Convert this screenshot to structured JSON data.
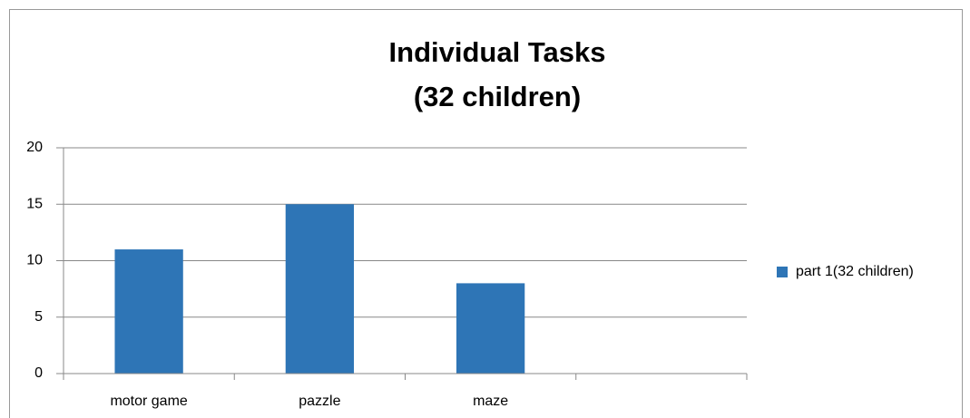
{
  "chart_data": {
    "type": "bar",
    "title": [
      "Individual Tasks",
      "(32 children)"
    ],
    "categories": [
      "motor game",
      "pazzle",
      "maze",
      null
    ],
    "series": [
      {
        "name": "part 1(32 children)",
        "color": "#2e75b6",
        "values": [
          11,
          15,
          8,
          null
        ]
      }
    ],
    "ylim": [
      0,
      20
    ],
    "yticks": [
      0,
      5,
      10,
      15,
      20
    ],
    "grid": true,
    "legend": "right"
  }
}
